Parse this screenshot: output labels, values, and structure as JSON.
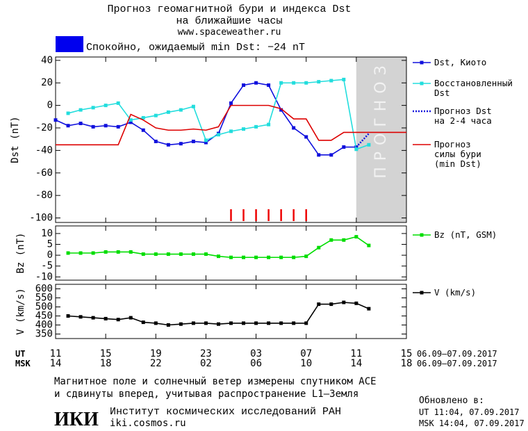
{
  "header": {
    "title": "Прогноз геомагнитной бури и индекса Dst",
    "subtitle": "на ближайшие часы",
    "url": "www.spaceweather.ru"
  },
  "status": {
    "text": "Спокойно, ожидаемый min Dst: −24 nT",
    "color": "#0000ee"
  },
  "chart_data": [
    {
      "type": "line",
      "y_label": "Dst (nT)",
      "xlim": [
        0,
        28
      ],
      "ylim": [
        -104,
        43
      ],
      "yticks": [
        40,
        20,
        0,
        -20,
        -40,
        -60,
        -80,
        -100
      ],
      "forecast_region": {
        "xlim": [
          24,
          28
        ],
        "label": "ПРОГНОЗ",
        "color": "#d3d3d3"
      },
      "storm_marks": {
        "color": "#ee0000",
        "x": [
          14,
          15,
          16,
          17,
          18,
          19,
          20
        ]
      },
      "series": [
        {
          "name": "Dst, Киото",
          "color": "#1010dd",
          "marker": "square",
          "dash": "solid",
          "x": [
            0,
            1,
            2,
            3,
            4,
            5,
            6,
            7,
            8,
            9,
            10,
            11,
            12,
            13,
            14,
            15,
            16,
            17,
            18,
            19,
            20,
            21,
            22,
            23,
            24
          ],
          "values": [
            -13,
            -18,
            -16,
            -19,
            -18,
            -19,
            -15,
            -22,
            -32,
            -35,
            -34,
            -32,
            -33,
            -25,
            2,
            18,
            20,
            18,
            -4,
            -20,
            -28,
            -44,
            -44,
            -37,
            -37
          ]
        },
        {
          "name": "Восстановленный\nDst",
          "color": "#22dddd",
          "marker": "square",
          "dash": "solid",
          "x": [
            1,
            2,
            3,
            4,
            5,
            6,
            7,
            8,
            9,
            10,
            11,
            12,
            13,
            14,
            15,
            16,
            17,
            18,
            19,
            20,
            21,
            22,
            23,
            24,
            25
          ],
          "values": [
            -7,
            -4,
            -2,
            0,
            2,
            -13,
            -11,
            -9,
            -6,
            -4,
            -1,
            -31,
            -26,
            -23,
            -21,
            -19,
            -17,
            20,
            20,
            20,
            21,
            22,
            23,
            -39,
            -35
          ]
        },
        {
          "name": "Прогноз Dst\nна 2-4 часа",
          "color": "#1010dd",
          "marker": "none",
          "dash": "dotted",
          "x": [
            24,
            25
          ],
          "values": [
            -37,
            -25
          ]
        },
        {
          "name": "Прогноз\nсилы бури\n(min Dst)",
          "color": "#dd0000",
          "marker": "none",
          "dash": "solid",
          "x": [
            0,
            1,
            2,
            3,
            4,
            5,
            6,
            7,
            8,
            9,
            10,
            11,
            12,
            13,
            14,
            15,
            16,
            17,
            18,
            19,
            20,
            21,
            22,
            23,
            24,
            25,
            26,
            27,
            28
          ],
          "values": [
            -35,
            -35,
            -35,
            -35,
            -35,
            -35,
            -8,
            -13,
            -20,
            -22,
            -22,
            -21,
            -22,
            -19,
            0,
            0,
            0,
            0,
            -3,
            -12,
            -12,
            -31,
            -31,
            -24,
            -24,
            -24,
            -24,
            -24,
            -24
          ]
        }
      ]
    },
    {
      "type": "line",
      "y_label": "Bz (nT)",
      "xlim": [
        0,
        28
      ],
      "ylim": [
        -11.5,
        13.5
      ],
      "yticks": [
        10,
        5,
        0,
        -5,
        -10
      ],
      "series": [
        {
          "name": "Bz (nT, GSM)",
          "color": "#00dd00",
          "marker": "square",
          "dash": "solid",
          "x": [
            1,
            2,
            3,
            4,
            5,
            6,
            7,
            8,
            9,
            10,
            11,
            12,
            13,
            14,
            15,
            16,
            17,
            18,
            19,
            20,
            21,
            22,
            23,
            24,
            25
          ],
          "values": [
            1,
            1,
            1,
            1.5,
            1.5,
            1.5,
            0.5,
            0.5,
            0.5,
            0.5,
            0.5,
            0.5,
            -0.5,
            -1,
            -1,
            -1,
            -1,
            -1,
            -1,
            -0.5,
            3.5,
            7,
            7,
            8.5,
            4.5
          ]
        }
      ]
    },
    {
      "type": "line",
      "y_label": "V (km/s)",
      "xlim": [
        0,
        28
      ],
      "ylim": [
        325,
        625
      ],
      "yticks": [
        600,
        550,
        500,
        450,
        400,
        350
      ],
      "x_label": "UT",
      "x2_label": "MSK",
      "xticks": [
        {
          "value": 0,
          "label": "11"
        },
        {
          "value": 4,
          "label": "15"
        },
        {
          "value": 8,
          "label": "19"
        },
        {
          "value": 12,
          "label": "23"
        },
        {
          "value": 16,
          "label": "03"
        },
        {
          "value": 20,
          "label": "07"
        },
        {
          "value": 24,
          "label": "11"
        },
        {
          "value": 28,
          "label": "15"
        }
      ],
      "x2ticks": [
        {
          "value": 0,
          "label": "14"
        },
        {
          "value": 4,
          "label": "18"
        },
        {
          "value": 8,
          "label": "22"
        },
        {
          "value": 12,
          "label": "02"
        },
        {
          "value": 16,
          "label": "06"
        },
        {
          "value": 20,
          "label": "10"
        },
        {
          "value": 24,
          "label": "14"
        },
        {
          "value": 28,
          "label": "18"
        }
      ],
      "date_range": "06.09–07.09.2017",
      "date_range_msk": "06.09–07.09.2017",
      "series": [
        {
          "name": "V (km/s)",
          "color": "#000000",
          "marker": "square",
          "dash": "solid",
          "x": [
            1,
            2,
            3,
            4,
            5,
            6,
            7,
            8,
            9,
            10,
            11,
            12,
            13,
            14,
            15,
            16,
            17,
            18,
            19,
            20,
            21,
            22,
            23,
            24,
            25
          ],
          "values": [
            450,
            445,
            440,
            435,
            430,
            440,
            415,
            410,
            400,
            405,
            410,
            410,
            405,
            410,
            410,
            410,
            410,
            410,
            410,
            410,
            515,
            515,
            525,
            520,
            490
          ]
        }
      ]
    }
  ],
  "footer": {
    "note_line1": "Магнитное поле и солнечный ветер измерены спутником ACE",
    "note_line2": "и сдвинуты вперед, учитывая распространение L1–Земля",
    "updated_label": "Обновлено в:",
    "updated_ut": "UT  11:04, 07.09.2017",
    "updated_msk": "MSK 14:04, 07.09.2017",
    "logo": "ИКИ",
    "institute": "Институт космических исследований РАН",
    "institute_url": "iki.cosmos.ru"
  }
}
